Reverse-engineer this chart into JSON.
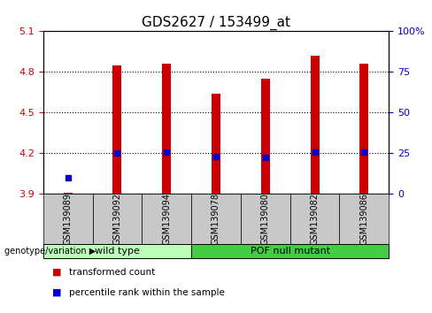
{
  "title": "GDS2627 / 153499_at",
  "samples": [
    "GSM139089",
    "GSM139092",
    "GSM139094",
    "GSM139078",
    "GSM139080",
    "GSM139082",
    "GSM139086"
  ],
  "red_values": [
    3.91,
    4.85,
    4.86,
    4.64,
    4.75,
    4.92,
    4.86
  ],
  "blue_values": [
    4.02,
    4.2,
    4.21,
    4.18,
    4.17,
    4.21,
    4.21
  ],
  "base_value": 3.9,
  "ylim": [
    3.9,
    5.1
  ],
  "yticks": [
    3.9,
    4.2,
    4.5,
    4.8,
    5.1
  ],
  "dotted_lines": [
    4.2,
    4.5,
    4.8
  ],
  "right_yticks": [
    0,
    25,
    50,
    75,
    100
  ],
  "right_ylabels": [
    "0",
    "25",
    "50",
    "75",
    "100%"
  ],
  "groups": [
    {
      "label": "wild type",
      "start": 0,
      "end": 2,
      "color": "#BBFFBB"
    },
    {
      "label": "POF null mutant",
      "start": 3,
      "end": 6,
      "color": "#44CC44"
    }
  ],
  "bar_color": "#CC0000",
  "blue_color": "#0000CC",
  "bar_width": 0.18,
  "blue_marker_size": 5,
  "label_area_color": "#C8C8C8",
  "legend_red": "transformed count",
  "legend_blue": "percentile rank within the sample",
  "genotype_label": "genotype/variation",
  "title_fontsize": 11,
  "tick_fontsize": 8,
  "sample_fontsize": 7
}
